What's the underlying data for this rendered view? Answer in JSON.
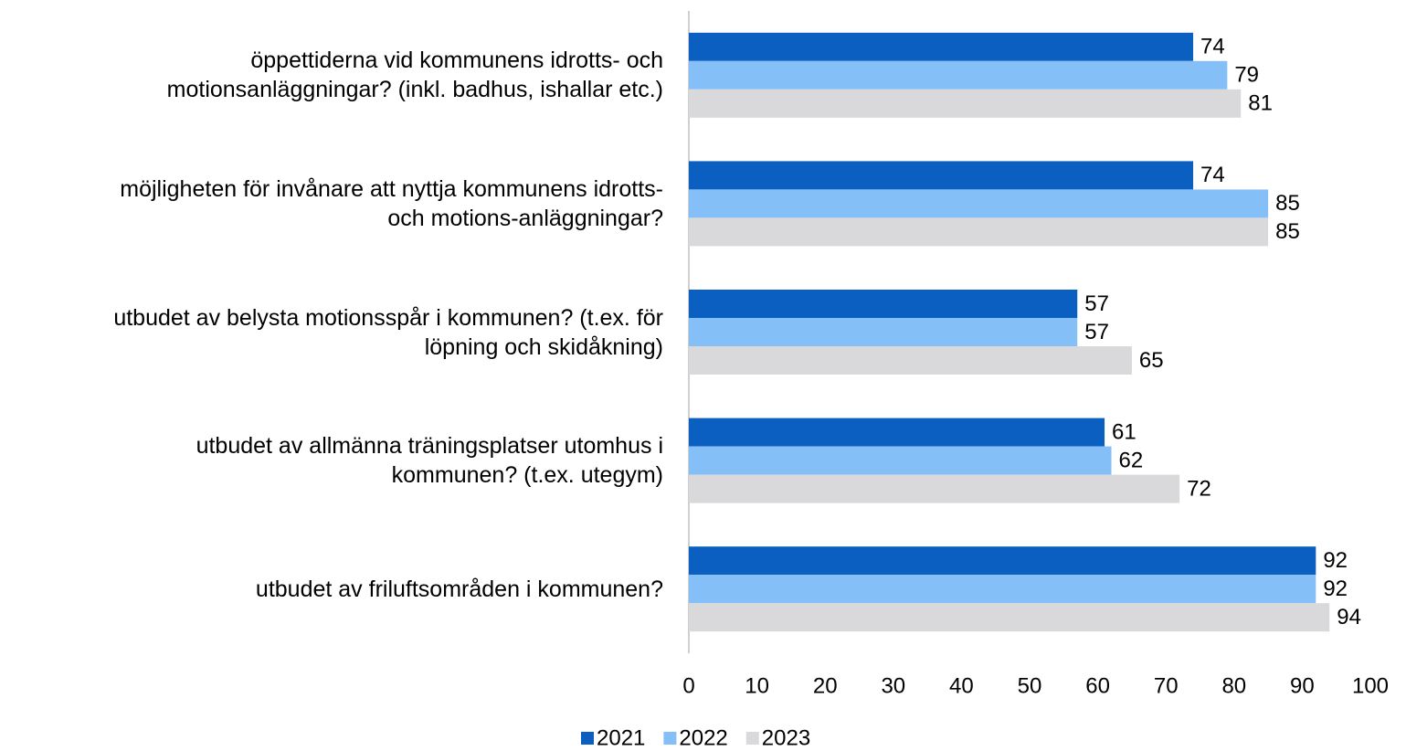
{
  "chart_data": {
    "type": "bar",
    "orientation": "horizontal",
    "categories": [
      "öppettiderna vid kommunens idrotts- och\nmotionsanläggningar? (inkl. badhus, ishallar etc.)",
      "möjligheten för invånare att nyttja kommunens idrotts-\noch motions-anläggningar?",
      "utbudet av belysta motionsspår  i kommunen? (t.ex. för\nlöpning och skidåkning)",
      "utbudet av allmänna träningsplatser utomhus i\nkommunen? (t.ex. utegym)",
      "utbudet av friluftsområden i kommunen?"
    ],
    "series": [
      {
        "name": "2021",
        "color": "#0a5fc0",
        "values": [
          74,
          74,
          57,
          61,
          92
        ]
      },
      {
        "name": "2022",
        "color": "#85bff7",
        "values": [
          79,
          85,
          57,
          62,
          92
        ]
      },
      {
        "name": "2023",
        "color": "#d9d9dc",
        "values": [
          81,
          85,
          65,
          72,
          94
        ]
      }
    ],
    "xlim": [
      0,
      100
    ],
    "xticks": [
      0,
      10,
      20,
      30,
      40,
      50,
      60,
      70,
      80,
      90,
      100
    ],
    "legend": "bottom",
    "grid": false
  }
}
